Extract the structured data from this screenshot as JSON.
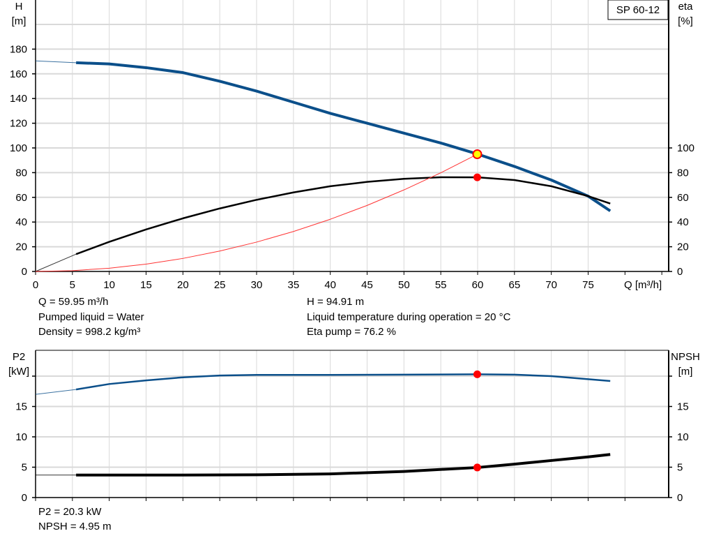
{
  "pump_label": "SP 60-12",
  "colors": {
    "head": "#0b4f8a",
    "eta": "#000000",
    "system": "#ff3333",
    "p2": "#0b4f8a",
    "npsh": "#000000",
    "duty_point": "#ff0000",
    "duty_marker_fill": "#ffff00",
    "grid": "#d9d9d9"
  },
  "chart_data": [
    {
      "type": "line",
      "xlabel": "Q [m³/h]",
      "ylabel_left": [
        "H",
        "[m]"
      ],
      "ylabel_right": [
        "eta",
        "[%]"
      ],
      "xlim": [
        0,
        85
      ],
      "ylim": [
        0,
        200
      ],
      "ylim_right": [
        0,
        200
      ],
      "x_ticks": [
        0,
        5,
        10,
        15,
        20,
        25,
        30,
        35,
        40,
        45,
        50,
        55,
        60,
        65,
        70,
        75
      ],
      "y_ticks_left": [
        0,
        20,
        40,
        60,
        80,
        100,
        120,
        140,
        160,
        180
      ],
      "y_ticks_right": [
        0,
        20,
        40,
        60,
        80,
        100
      ],
      "grid": true,
      "series": [
        {
          "key": "head",
          "axis": "left",
          "x": [
            5.5,
            10,
            15,
            20,
            25,
            30,
            35,
            40,
            45,
            50,
            55,
            60,
            65,
            70,
            75,
            78
          ],
          "y": [
            169,
            168,
            165,
            161,
            154,
            146,
            137,
            128,
            120,
            112,
            104,
            95,
            85,
            74,
            61,
            49
          ],
          "extension": {
            "x": [
              0,
              5.5
            ],
            "y": [
              170.5,
              169
            ]
          }
        },
        {
          "key": "eta",
          "axis": "right",
          "x": [
            5.5,
            10,
            15,
            20,
            25,
            30,
            35,
            40,
            45,
            50,
            55,
            60,
            65,
            70,
            75,
            78
          ],
          "y": [
            14,
            24,
            34,
            43,
            51,
            58,
            64,
            69,
            72.5,
            75,
            76.3,
            76.2,
            74,
            69,
            61,
            55
          ],
          "extension": {
            "x": [
              0,
              5.5
            ],
            "y": [
              0,
              14
            ]
          }
        },
        {
          "key": "system",
          "axis": "left",
          "x": [
            0,
            5,
            10,
            15,
            20,
            25,
            30,
            35,
            40,
            45,
            50,
            55,
            59.95
          ],
          "y": [
            0,
            0.66,
            2.64,
            5.94,
            10.56,
            16.5,
            23.77,
            32.35,
            42.25,
            53.47,
            66.02,
            79.88,
            94.91
          ]
        }
      ],
      "duty_points": [
        {
          "x": 59.95,
          "y": 94.91,
          "series": "head"
        },
        {
          "x": 59.95,
          "y": 76.2,
          "series": "eta"
        }
      ]
    },
    {
      "type": "line",
      "ylabel_left": [
        "P2",
        "[kW]"
      ],
      "ylabel_right": [
        "NPSH",
        "[m]"
      ],
      "xlim": [
        0,
        85
      ],
      "ylim": [
        0,
        22.5
      ],
      "x_ticks": [
        0,
        5,
        10,
        15,
        20,
        25,
        30,
        35,
        40,
        45,
        50,
        55,
        60,
        65,
        70,
        75,
        80
      ],
      "y_ticks": [
        0,
        5,
        10,
        15,
        20
      ],
      "y_tick_labels": [
        "0",
        "5",
        "10",
        "15",
        ""
      ],
      "grid": true,
      "series": [
        {
          "key": "p2",
          "axis": "left",
          "x": [
            5.5,
            10,
            15,
            20,
            25,
            30,
            40,
            50,
            60,
            65,
            70,
            75,
            78
          ],
          "y": [
            17.8,
            18.7,
            19.3,
            19.8,
            20.1,
            20.2,
            20.2,
            20.25,
            20.3,
            20.25,
            20.0,
            19.5,
            19.2
          ],
          "extension": {
            "x": [
              0,
              5.5
            ],
            "y": [
              17.0,
              17.8
            ]
          }
        },
        {
          "key": "npsh",
          "axis": "right",
          "x": [
            5.5,
            20,
            30,
            40,
            50,
            60,
            65,
            70,
            75,
            78
          ],
          "y": [
            3.7,
            3.7,
            3.75,
            3.9,
            4.3,
            4.95,
            5.5,
            6.1,
            6.7,
            7.1
          ],
          "extension": {
            "x": [
              0,
              5.5
            ],
            "y": [
              3.7,
              3.7
            ]
          }
        }
      ],
      "duty_points": [
        {
          "x": 59.95,
          "y": 20.3,
          "series": "p2"
        },
        {
          "x": 59.95,
          "y": 4.95,
          "series": "npsh"
        }
      ]
    }
  ],
  "info_top_left": [
    "Q = 59.95 m³/h",
    "Pumped liquid = Water",
    "Density = 998.2 kg/m³"
  ],
  "info_top_right": [
    "H = 94.91 m",
    "Liquid temperature during operation = 20 °C",
    "Eta pump = 76.2 %"
  ],
  "info_bottom": [
    "P2 = 20.3 kW",
    "NPSH = 4.95 m"
  ]
}
